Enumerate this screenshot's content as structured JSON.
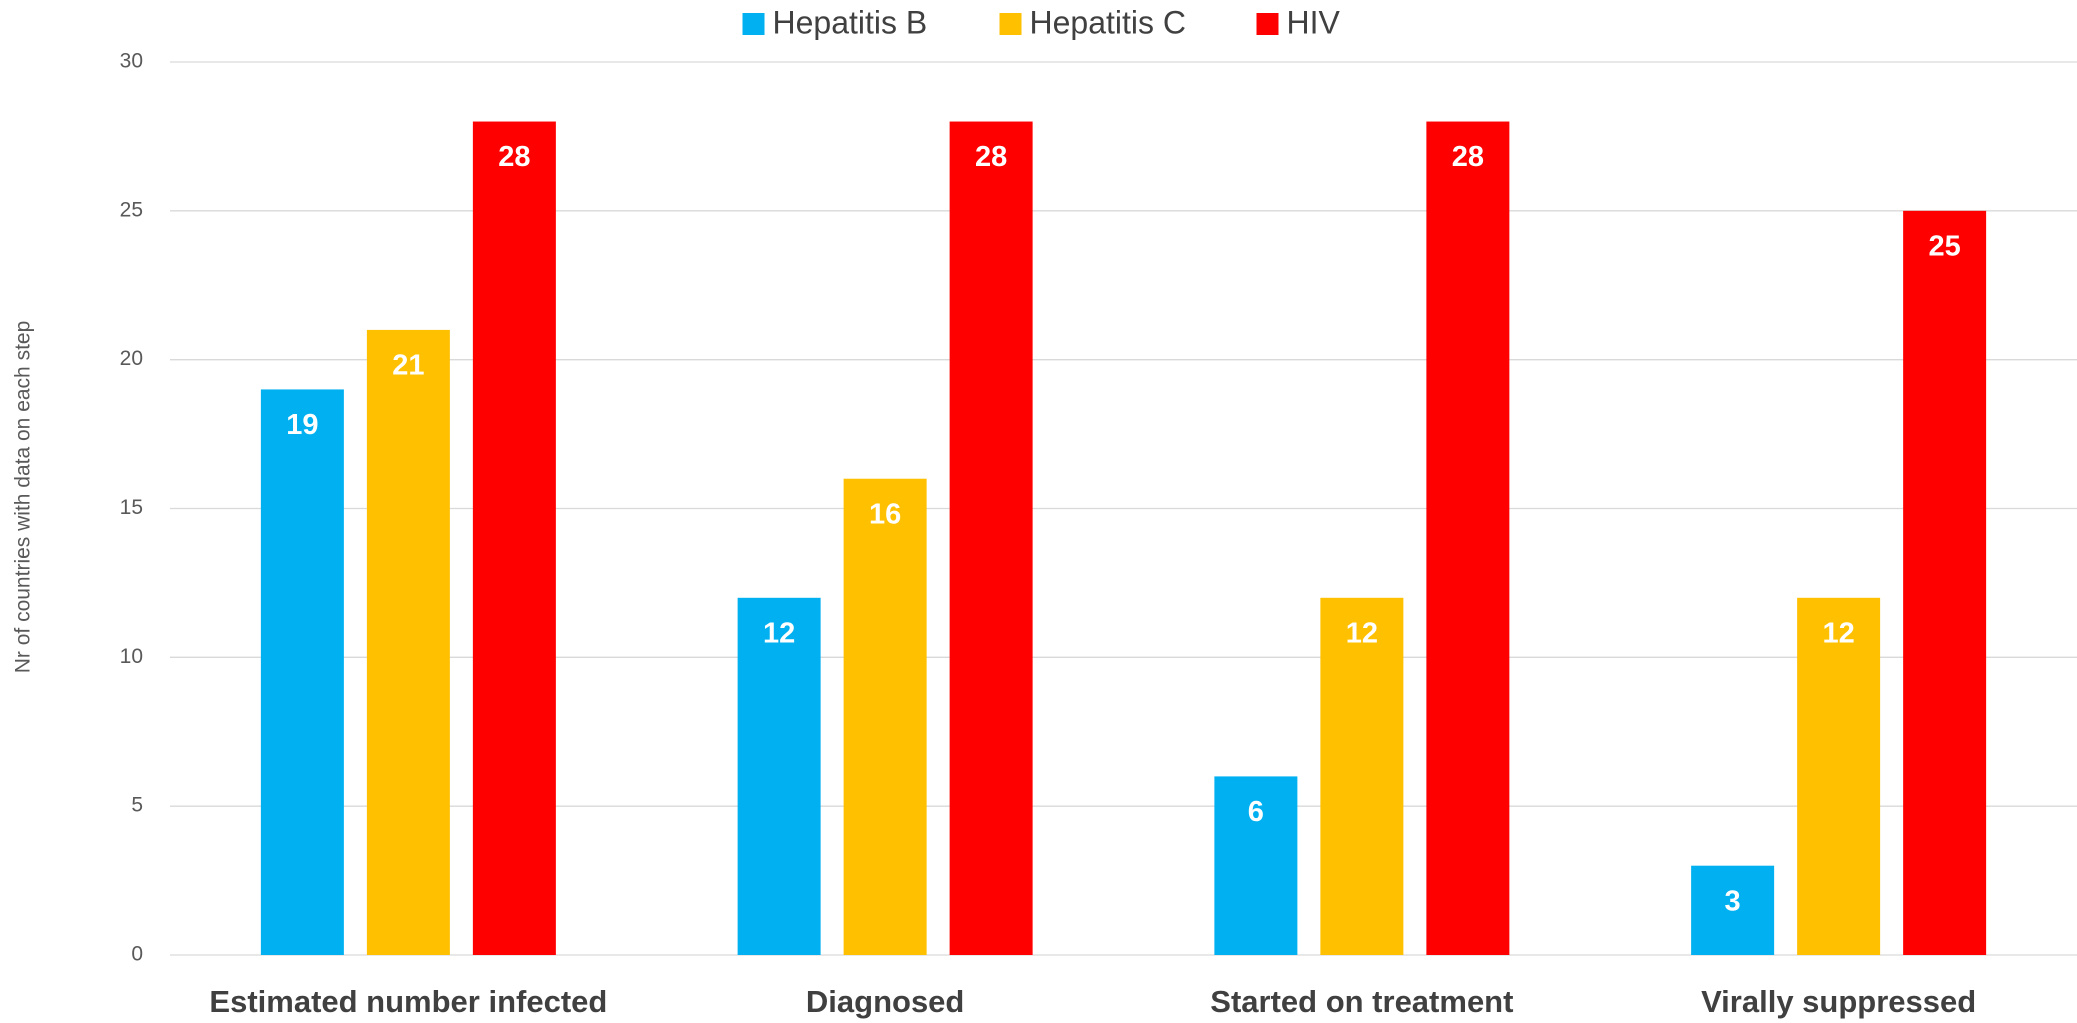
{
  "chart_data": {
    "type": "bar",
    "y_label": "Nr of countries with data on each step",
    "categories": [
      "Estimated number infected",
      "Diagnosed",
      "Started on treatment",
      "Virally suppressed"
    ],
    "series": [
      {
        "name": "Hepatitis B",
        "color": "#00b0f0",
        "values": [
          19,
          12,
          6,
          3
        ]
      },
      {
        "name": "Hepatitis C",
        "color": "#ffc000",
        "values": [
          21,
          16,
          12,
          12
        ]
      },
      {
        "name": "HIV",
        "color": "#ff0000",
        "values": [
          28,
          28,
          28,
          25
        ]
      }
    ],
    "ylim": [
      0,
      30
    ],
    "yticks": [
      0,
      5,
      10,
      15,
      20,
      25,
      30
    ],
    "grid": true,
    "legend": "top"
  }
}
